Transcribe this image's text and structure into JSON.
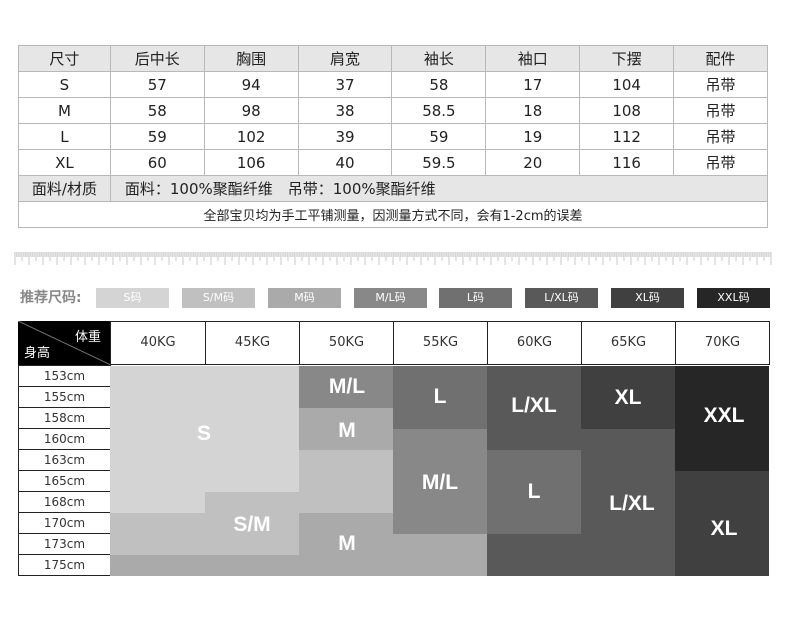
{
  "spec_table": {
    "headers": [
      "尺寸",
      "后中长",
      "胸围",
      "肩宽",
      "袖长",
      "袖口",
      "下摆",
      "配件"
    ],
    "rows": [
      [
        "S",
        "57",
        "94",
        "37",
        "58",
        "17",
        "104",
        "吊带"
      ],
      [
        "M",
        "58",
        "98",
        "38",
        "58.5",
        "18",
        "108",
        "吊带"
      ],
      [
        "L",
        "59",
        "102",
        "39",
        "59",
        "19",
        "112",
        "吊带"
      ],
      [
        "XL",
        "60",
        "106",
        "40",
        "59.5",
        "20",
        "116",
        "吊带"
      ]
    ],
    "material_label": "面料/材质",
    "material_value": "面料：100%聚酯纤维　吊带：100%聚酯纤维",
    "note": "全部宝贝均为手工平铺测量，因测量方式不同，会有1-2cm的误差"
  },
  "legend": {
    "label": "推荐尺码:",
    "items": [
      {
        "label": "S码",
        "color": "#d4d4d4"
      },
      {
        "label": "S/M码",
        "color": "#c0c0c0"
      },
      {
        "label": "M码",
        "color": "#aaaaaa"
      },
      {
        "label": "M/L码",
        "color": "#888888"
      },
      {
        "label": "L码",
        "color": "#707070"
      },
      {
        "label": "L/XL码",
        "color": "#595959"
      },
      {
        "label": "XL码",
        "color": "#404040"
      },
      {
        "label": "XXL码",
        "color": "#262626"
      }
    ]
  },
  "size_grid": {
    "corner_weight": "体重",
    "corner_height": "身高",
    "weights": [
      "40KG",
      "45KG",
      "50KG",
      "55KG",
      "60KG",
      "65KG",
      "70KG"
    ],
    "heights": [
      "153cm",
      "155cm",
      "158cm",
      "160cm",
      "163cm",
      "165cm",
      "168cm",
      "170cm",
      "173cm",
      "175cm"
    ],
    "regions": [
      {
        "size": "S",
        "label": "S"
      },
      {
        "size": "S/M",
        "label": "S/M"
      },
      {
        "size": "M",
        "label": "M"
      },
      {
        "size": "M/L",
        "label": "M/L"
      },
      {
        "size": "L",
        "label": "L"
      },
      {
        "size": "L/XL",
        "label": "L/XL"
      },
      {
        "size": "XL",
        "label": "XL"
      },
      {
        "size": "XXL",
        "label": "XXL"
      }
    ],
    "zone_labels": [
      "M/L",
      "M",
      "L",
      "M/L",
      "M",
      "L/XL",
      "L",
      "XL",
      "L/XL",
      "XXL",
      "XL"
    ]
  }
}
